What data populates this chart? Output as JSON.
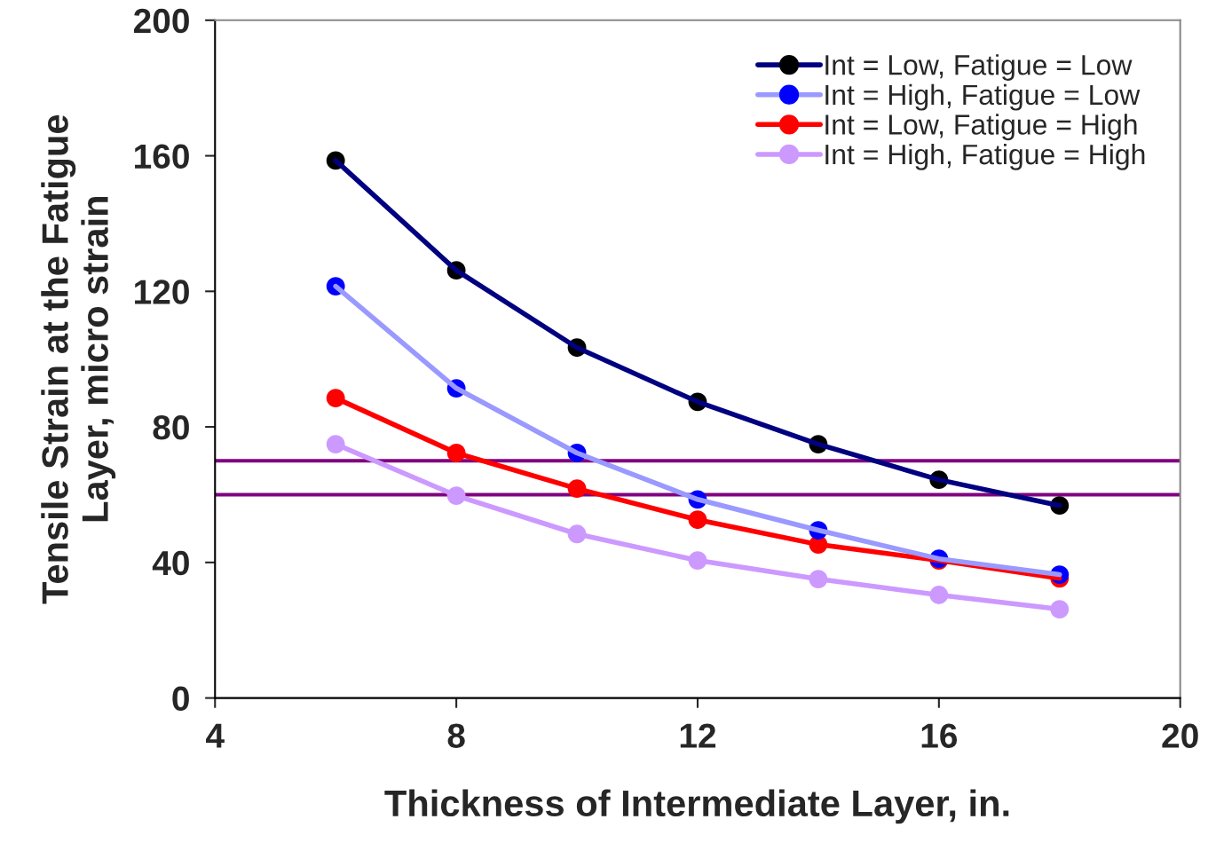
{
  "chart_data": {
    "type": "line",
    "xlabel": "Thickness of Intermediate Layer, in.",
    "ylabel": "Tensile Strain at the Fatigue\nLayer, micro strain",
    "x": [
      6,
      8,
      10,
      12,
      14,
      16,
      18
    ],
    "series": [
      {
        "name": "Int = Low, Fatigue = Low",
        "color": "#000080",
        "colors": [
          "#000000",
          "#000000",
          "#000000",
          "#000000",
          "#000000",
          "#000000",
          "#000000"
        ],
        "values": [
          158.6,
          126.2,
          103.4,
          87.4,
          74.9,
          64.4,
          56.8
        ]
      },
      {
        "name": "Int = High, Fatigue = Low",
        "color": "#9999ff",
        "colors": [
          "#0000ff",
          "#0000ff",
          "#0000ff",
          "#0000ff",
          "#0000ff",
          "#0000ff",
          "#0000ff"
        ],
        "values": [
          121.5,
          91.4,
          72.3,
          58.6,
          49.5,
          41.1,
          36.4
        ]
      },
      {
        "name": "Int = Low, Fatigue = High",
        "color": "#ff0000",
        "colors": [
          "#ff0000",
          "#ff0000",
          "#ff0000",
          "#ff0000",
          "#ff0000",
          "#ff0000",
          "#ff0000"
        ],
        "values": [
          88.5,
          72.3,
          61.8,
          52.6,
          45.3,
          40.6,
          35.3
        ]
      },
      {
        "name": "Int = High, Fatigue = High",
        "color": "#cc99ff",
        "colors": [
          "#cc99ff",
          "#cc99ff",
          "#cc99ff",
          "#cc99ff",
          "#cc99ff",
          "#cc99ff",
          "#cc99ff"
        ],
        "values": [
          74.9,
          59.7,
          48.4,
          40.6,
          35.1,
          30.4,
          26.2
        ]
      }
    ],
    "xlim": [
      4,
      20
    ],
    "xticks": [
      4,
      8,
      12,
      16,
      20
    ],
    "ylim": [
      0,
      200
    ],
    "yticks": [
      0,
      40,
      80,
      120,
      160,
      200
    ],
    "ref_lines": [
      {
        "axis": "y",
        "value": 70,
        "color": "#800080"
      },
      {
        "axis": "y",
        "value": 60,
        "color": "#800080"
      }
    ],
    "marker": "circle",
    "line_style": "solid",
    "grid": false,
    "legend": "top right"
  }
}
